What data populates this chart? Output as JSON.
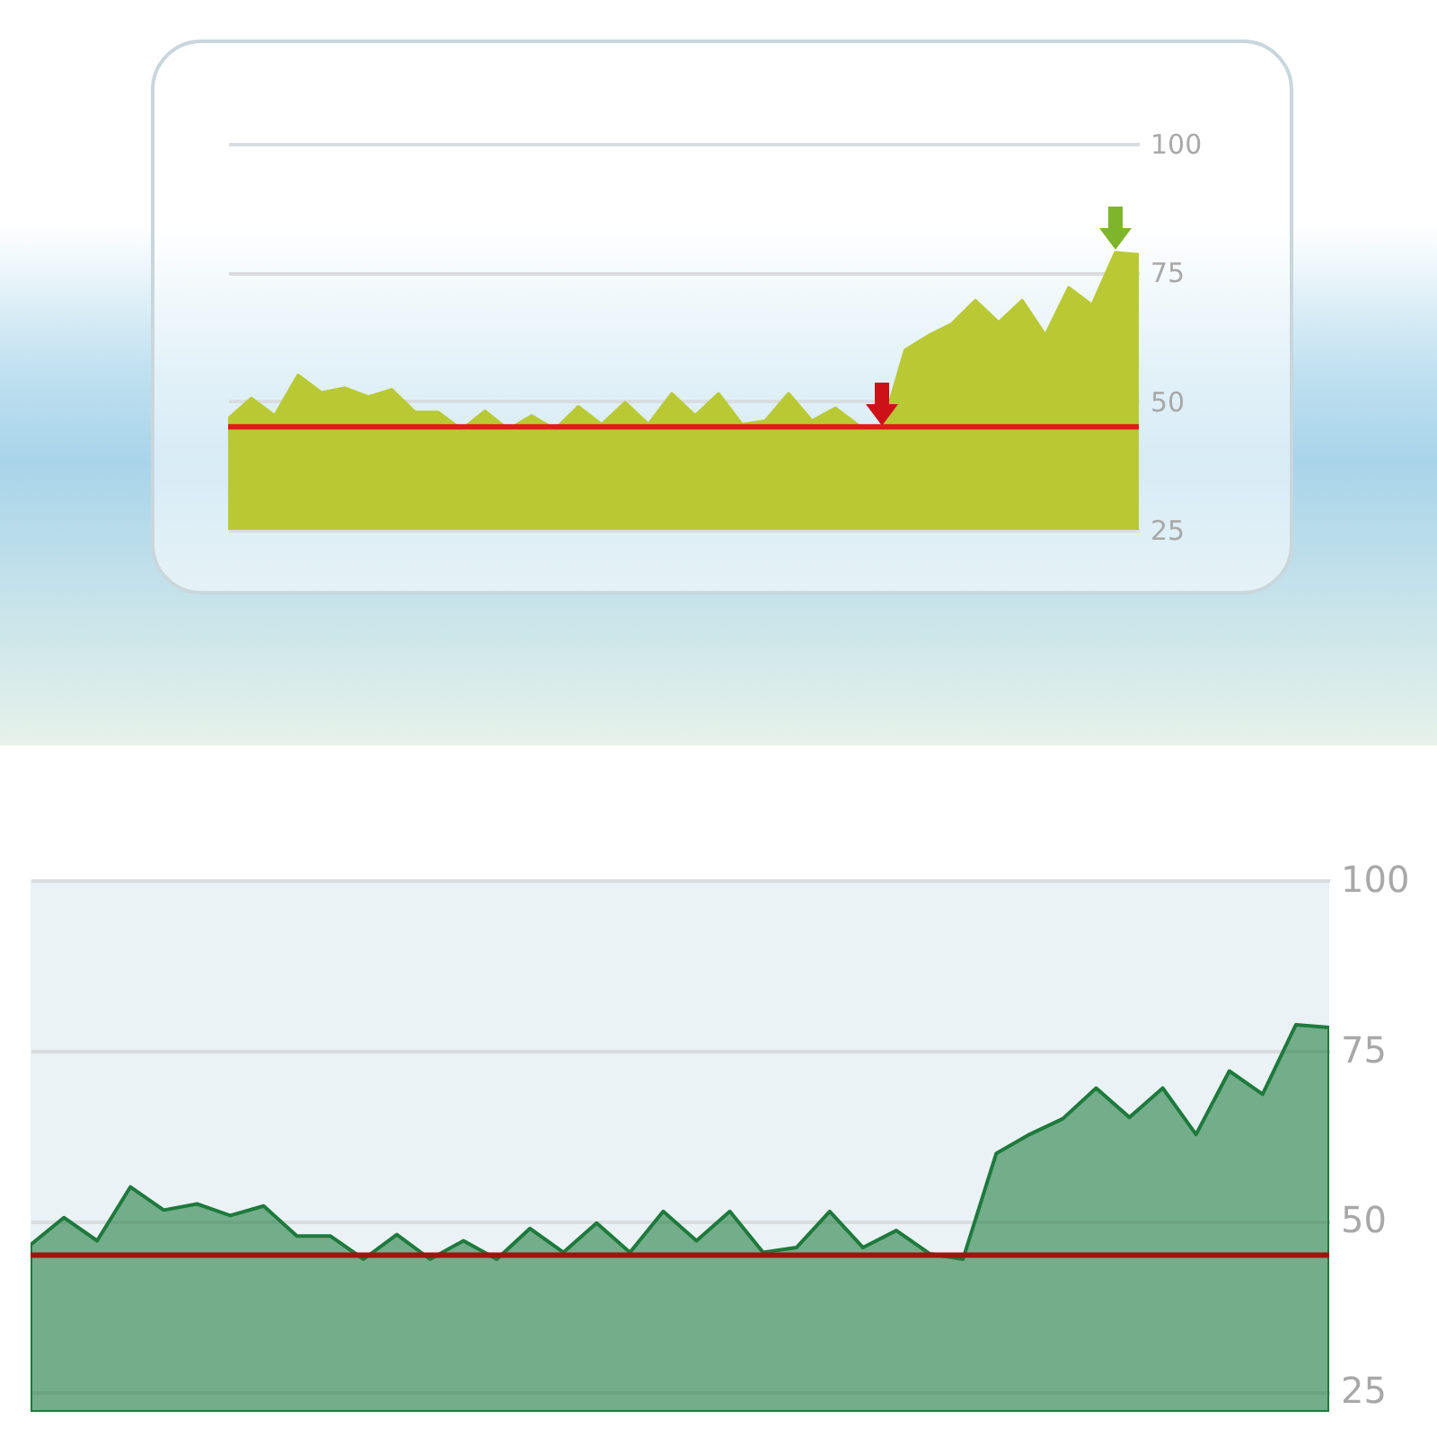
{
  "chart_data": [
    {
      "type": "area",
      "categories": [
        null,
        null,
        null,
        null,
        null,
        null,
        null,
        null,
        null,
        null,
        null,
        null,
        null,
        null,
        null,
        null,
        null,
        null,
        null,
        null,
        null,
        null,
        null,
        null,
        null,
        null,
        null,
        null,
        null,
        null,
        null,
        null,
        null,
        null,
        null,
        null,
        null,
        null,
        null,
        null
      ],
      "series": [
        {
          "color": "#b8c934",
          "values": [
            46.5,
            50.5,
            47.1,
            55.0,
            51.6,
            52.5,
            50.8,
            52.2,
            47.8,
            47.8,
            44.4,
            48.0,
            44.4,
            47.1,
            44.4,
            48.9,
            45.4,
            49.7,
            45.4,
            51.4,
            47.1,
            51.4,
            45.4,
            46.1,
            51.4,
            46.1,
            48.6,
            45.2,
            44.4,
            59.9,
            62.7,
            65.0,
            69.5,
            65.2,
            69.5,
            62.7,
            72.0,
            68.6,
            78.8,
            78.4
          ]
        }
      ],
      "ylim": [
        25,
        100
      ],
      "yticks": [
        25,
        50,
        75,
        100
      ],
      "grid": "y",
      "tick_labels": "y",
      "ref_lines": [
        {
          "axis": "y",
          "value": 45,
          "color": "#e01b1b"
        }
      ]
    },
    {
      "type": "area",
      "categories": [
        null,
        null,
        null,
        null,
        null,
        null,
        null,
        null,
        null,
        null,
        null,
        null,
        null,
        null,
        null,
        null,
        null,
        null,
        null,
        null,
        null,
        null,
        null,
        null,
        null,
        null,
        null,
        null,
        null,
        null,
        null,
        null,
        null,
        null,
        null,
        null,
        null,
        null,
        null,
        null
      ],
      "series": [
        {
          "color": "#1e7a3c",
          "values": [
            46.5,
            50.5,
            47.1,
            55.0,
            51.6,
            52.5,
            50.8,
            52.2,
            47.8,
            47.8,
            44.4,
            48.0,
            44.4,
            47.1,
            44.4,
            48.9,
            45.4,
            49.7,
            45.4,
            51.4,
            47.1,
            51.4,
            45.4,
            46.1,
            51.4,
            46.1,
            48.6,
            45.2,
            44.4,
            59.9,
            62.7,
            65.0,
            69.5,
            65.2,
            69.5,
            62.7,
            72.0,
            68.6,
            78.8,
            78.4
          ]
        }
      ],
      "ylim": [
        22,
        100
      ],
      "yticks": [
        25,
        50,
        75,
        100
      ],
      "grid": "y",
      "tick_labels": "y",
      "ref_lines": [
        {
          "axis": "y",
          "value": 45,
          "color": "#a3120f"
        }
      ]
    }
  ]
}
